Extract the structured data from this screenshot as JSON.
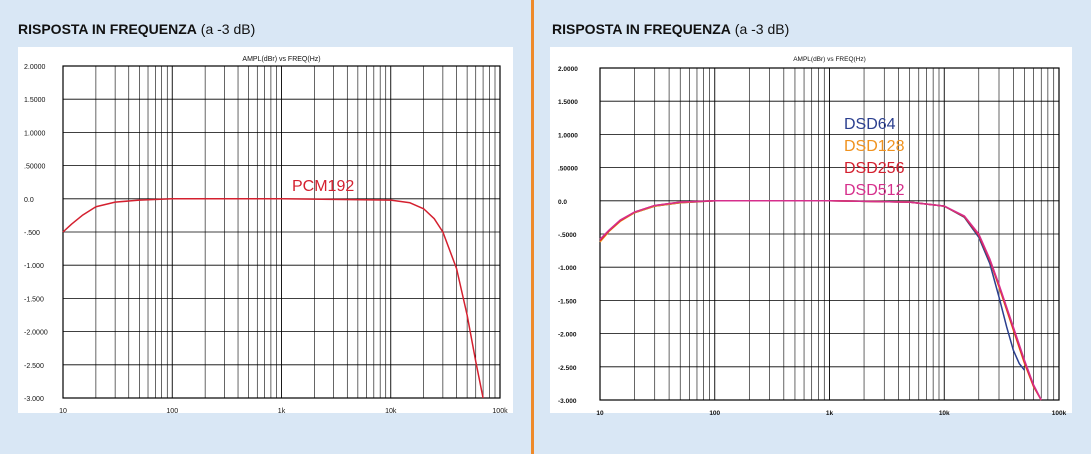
{
  "colors": {
    "background": "#d9e7f5",
    "divider": "#ee8a2a",
    "grid": "#000000"
  },
  "chart_data": [
    {
      "type": "line",
      "heading_bold": "RISPOSTA IN FREQUENZA",
      "heading_rest": "(a -3 dB)",
      "subtitle": "AMPL(dBr)      vs      FREQ(Hz)",
      "x_scale": "log",
      "xlim": [
        10,
        100000
      ],
      "ylim": [
        -3.0,
        2.0
      ],
      "x_ticks": [
        10,
        100,
        1000,
        10000,
        100000
      ],
      "x_tick_labels": [
        "10",
        "100",
        "1k",
        "10k",
        "100k"
      ],
      "y_ticks": [
        2.0,
        1.5,
        1.0,
        0.5,
        0.0,
        -0.5,
        -1.0,
        -1.5,
        -2.0,
        -2.5,
        -3.0
      ],
      "y_tick_labels": [
        "2.0000",
        "1.5000",
        "1.0000",
        ".50000",
        "0.0",
        "-.500",
        "-1.000",
        "-1.500",
        "-2.0000",
        "-2.500",
        "-3.000"
      ],
      "grid": true,
      "series": [
        {
          "name": "PCM192",
          "color": "#d4202f",
          "x": [
            10,
            12,
            15,
            20,
            30,
            50,
            100,
            1000,
            10000,
            15000,
            20000,
            25000,
            30000,
            40000,
            50000,
            60000,
            70000
          ],
          "y": [
            -0.5,
            -0.38,
            -0.25,
            -0.12,
            -0.05,
            -0.02,
            0.0,
            0.0,
            -0.02,
            -0.06,
            -0.15,
            -0.3,
            -0.5,
            -1.05,
            -1.75,
            -2.45,
            -3.0
          ]
        }
      ]
    },
    {
      "type": "line",
      "heading_bold": "RISPOSTA IN FREQUENZA",
      "heading_rest": "(a -3 dB)",
      "subtitle": "AMPL(dBr)      vs      FREQ(Hz)",
      "x_scale": "log",
      "xlim": [
        10,
        100000
      ],
      "ylim": [
        -3.0,
        2.0
      ],
      "x_ticks": [
        10,
        100,
        1000,
        10000,
        100000
      ],
      "x_tick_labels": [
        "10",
        "100",
        "1k",
        "10k",
        "100k"
      ],
      "y_ticks": [
        2.0,
        1.5,
        1.0,
        0.5,
        0.0,
        -0.5,
        -1.0,
        -1.5,
        -2.0,
        -2.5,
        -3.0
      ],
      "y_tick_labels": [
        "2.0000",
        "1.5000",
        "1.0000",
        ".50000",
        "0.0",
        "-.5000",
        "-1.000",
        "-1.500",
        "-2.000",
        "-2.500",
        "-3.000"
      ],
      "grid": true,
      "series": [
        {
          "name": "DSD64",
          "color": "#2b3f8f",
          "x": [
            10,
            12,
            15,
            20,
            30,
            50,
            100,
            1000,
            5000,
            10000,
            15000,
            20000,
            25000,
            30000,
            35000,
            40000,
            45000,
            50000
          ],
          "y": [
            -0.6,
            -0.45,
            -0.3,
            -0.18,
            -0.08,
            -0.03,
            0.0,
            0.0,
            -0.02,
            -0.08,
            -0.25,
            -0.55,
            -0.95,
            -1.45,
            -1.9,
            -2.25,
            -2.45,
            -2.55
          ]
        },
        {
          "name": "DSD128",
          "color": "#f0921e",
          "x": [
            10,
            12,
            15,
            20,
            30,
            50,
            100,
            1000,
            5000,
            10000,
            15000,
            20000,
            25000,
            30000,
            40000,
            50000,
            60000,
            70000
          ],
          "y": [
            -0.62,
            -0.46,
            -0.31,
            -0.18,
            -0.08,
            -0.03,
            0.0,
            0.0,
            -0.02,
            -0.08,
            -0.24,
            -0.52,
            -0.9,
            -1.3,
            -1.95,
            -2.45,
            -2.8,
            -3.0
          ]
        },
        {
          "name": "DSD256",
          "color": "#d4202f",
          "x": [
            10,
            12,
            15,
            20,
            30,
            50,
            100,
            1000,
            5000,
            10000,
            15000,
            20000,
            25000,
            30000,
            40000,
            50000,
            60000,
            70000
          ],
          "y": [
            -0.6,
            -0.45,
            -0.3,
            -0.17,
            -0.07,
            -0.02,
            0.0,
            0.0,
            -0.02,
            -0.08,
            -0.24,
            -0.52,
            -0.9,
            -1.28,
            -1.93,
            -2.43,
            -2.79,
            -3.0
          ]
        },
        {
          "name": "DSD512",
          "color": "#d62f8c",
          "x": [
            10,
            12,
            15,
            20,
            30,
            50,
            100,
            1000,
            5000,
            10000,
            15000,
            20000,
            25000,
            30000,
            40000,
            50000,
            60000,
            70000
          ],
          "y": [
            -0.58,
            -0.44,
            -0.29,
            -0.17,
            -0.07,
            -0.02,
            0.0,
            0.0,
            -0.02,
            -0.08,
            -0.23,
            -0.5,
            -0.88,
            -1.26,
            -1.9,
            -2.4,
            -2.77,
            -3.0
          ]
        }
      ]
    }
  ]
}
